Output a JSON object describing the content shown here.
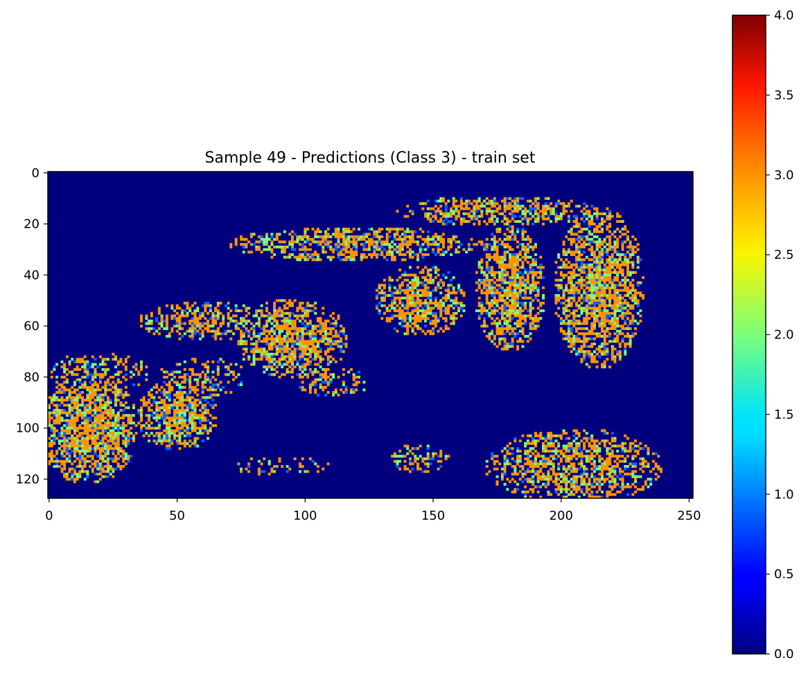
{
  "chart_data": {
    "type": "heatmap",
    "title": "Sample 49 - Predictions (Class 3) - train set",
    "xlabel": "",
    "ylabel": "",
    "image_shape": [
      128,
      252
    ],
    "xlim": [
      -0.5,
      251.5
    ],
    "ylim": [
      127.5,
      -0.5
    ],
    "x_ticks": [
      0,
      50,
      100,
      150,
      200,
      250
    ],
    "x_tick_labels": [
      "0",
      "50",
      "100",
      "150",
      "200",
      "250"
    ],
    "y_ticks": [
      0,
      20,
      40,
      60,
      80,
      100,
      120
    ],
    "y_tick_labels": [
      "0",
      "20",
      "40",
      "60",
      "80",
      "100",
      "120"
    ],
    "colormap": "jet",
    "value_range": [
      0.0,
      4.0
    ],
    "grid": false,
    "classes_present": [
      0,
      1,
      2,
      3
    ],
    "class_colors": {
      "0": "#00007f",
      "1": "#0066ff",
      "2": "#7cff79",
      "3": "#ff9400"
    },
    "regions_of_class_3": [
      {
        "x": [
          0,
          35
        ],
        "y": [
          80,
          125
        ],
        "dominant": 3
      },
      {
        "x": [
          38,
          65
        ],
        "y": [
          85,
          110
        ],
        "dominant": 3
      },
      {
        "x": [
          80,
          115
        ],
        "y": [
          50,
          80
        ],
        "dominant": 3
      },
      {
        "x": [
          130,
          165
        ],
        "y": [
          40,
          65
        ],
        "dominant": 3
      },
      {
        "x": [
          170,
          195
        ],
        "y": [
          30,
          70
        ],
        "dominant": 3
      },
      {
        "x": [
          200,
          240
        ],
        "y": [
          10,
          70
        ],
        "dominant": 3
      }
    ],
    "colorbar": {
      "min": 0.0,
      "max": 4.0,
      "ticks": [
        0.0,
        0.5,
        1.0,
        1.5,
        2.0,
        2.5,
        3.0,
        3.5,
        4.0
      ],
      "tick_labels": [
        "0.0",
        "0.5",
        "1.0",
        "1.5",
        "2.0",
        "2.5",
        "3.0",
        "3.5",
        "4.0"
      ]
    }
  }
}
